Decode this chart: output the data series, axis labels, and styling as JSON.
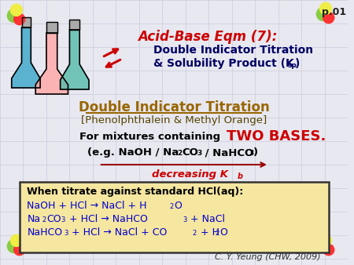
{
  "bg_color": "#e8e8f0",
  "grid_color": "#ccccdd",
  "title_line1": "Acid-Base Eqm (7):",
  "title_line2": "Double Indicator Titration",
  "page_label": "p.01",
  "section_title": "Double Indicator Titration",
  "section_subtitle": "[Phenolphthalein & Methyl Orange]",
  "box_header": "When titrate against standard HCl(aq):",
  "footer": "C. Y. Yeung (CHW, 2009)",
  "red_color": "#cc0000",
  "dark_red": "#990000",
  "olive_color": "#996600",
  "blue_color": "#0000cc",
  "dark_blue": "#000066",
  "box_bg": "#f5e6a0",
  "box_border": "#333333"
}
